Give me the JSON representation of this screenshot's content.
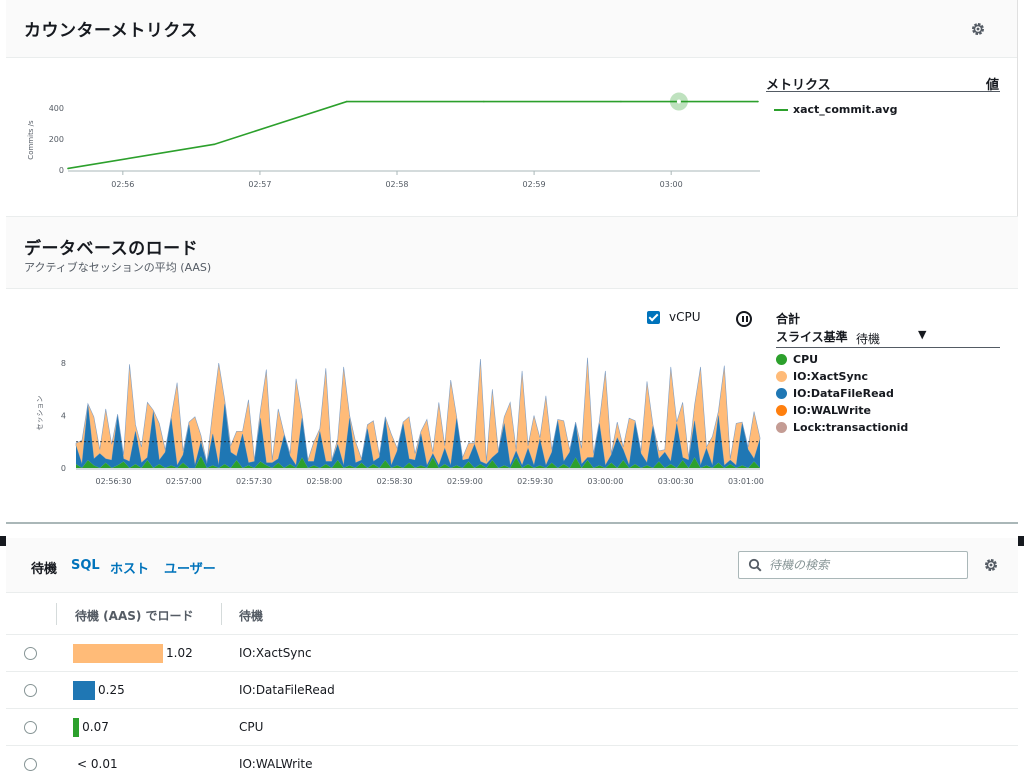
{
  "counter_metrics": {
    "title": "カウンターメトリクス",
    "legend_header_metric": "メトリクス",
    "legend_header_value": "値",
    "legend_items": [
      {
        "label": "xact_commit.avg",
        "color": "#2ca02c"
      }
    ],
    "icon": "gear-icon"
  },
  "db_load": {
    "title": "データベースのロード",
    "subtitle": "アクティブなセッションの平均 (AAS)",
    "vcpu_label": "vCPU",
    "vcpu_checked": true,
    "total_label": "合計",
    "slice_label": "スライス基準",
    "slice_value": "待機",
    "legend": [
      {
        "label": "CPU",
        "color": "#2ca02c"
      },
      {
        "label": "IO:XactSync",
        "color": "#ffbb78"
      },
      {
        "label": "IO:DataFileRead",
        "color": "#1f77b4"
      },
      {
        "label": "IO:WALWrite",
        "color": "#ff7f0e"
      },
      {
        "label": "Lock:transactionid",
        "color": "#c49c94"
      }
    ]
  },
  "chart_data": [
    {
      "type": "line",
      "ylabel": "Commits /s",
      "ylim": [
        0,
        450
      ],
      "yticks": [
        "0",
        "200",
        "400"
      ],
      "x": [
        "02:55:36",
        "02:56:40",
        "02:57:38",
        "02:58:38",
        "02:59:38",
        "03:00:38"
      ],
      "xticks": [
        "02:56",
        "02:57",
        "02:58",
        "02:59",
        "03:00"
      ],
      "series": [
        {
          "name": "xact_commit.avg",
          "color": "#2ca02c",
          "values": [
            10,
            165,
            440,
            440,
            440,
            440
          ]
        }
      ]
    },
    {
      "type": "area",
      "ylabel": "セッション",
      "ylim": [
        0,
        8
      ],
      "yticks": [
        "0",
        "4",
        "8"
      ],
      "xticks": [
        "02:56:30",
        "02:57:00",
        "02:57:30",
        "02:58:00",
        "02:58:30",
        "02:59:00",
        "02:59:30",
        "03:00:00",
        "03:00:30",
        "03:01:00"
      ],
      "vcpu_line": 2,
      "series": [
        {
          "name": "IO:XactSync",
          "color": "#ffbb78",
          "values": [
            0.2,
            1.8,
            0.1,
            3.2,
            0.3,
            3.8,
            1.2,
            0.1,
            0.3,
            7.4,
            0.5,
            1.2,
            4.2,
            0.1,
            2.8,
            0.2,
            0.1,
            6.3,
            0.3,
            0.2,
            3.7,
            0.5,
            0.1,
            1.8,
            7.8,
            0.3,
            0.5,
            1.9,
            0.2,
            4.8,
            0.1,
            0.6,
            7.1,
            0.2,
            3.8,
            0.1,
            0.2,
            6.6,
            0.3,
            0.1,
            1.5,
            0.2,
            7.1,
            0.1,
            0.4,
            7.5,
            0.2,
            1.6,
            0.1,
            0.3,
            3.1,
            0.2,
            0.1,
            2.4,
            0.2,
            0.1,
            3.2,
            0.5,
            0.2,
            3.5,
            0.1,
            4.8,
            0.2,
            6.5,
            0.1,
            0.2,
            1.2,
            0.1,
            7.8,
            0.2,
            5.2,
            0.1,
            0.5,
            4.8,
            0.1,
            7.2,
            0.2,
            3.8,
            0.1,
            5.3,
            0.2,
            0.1,
            3.1,
            0.2,
            0.1,
            1.2,
            7.6,
            0.3,
            0.2,
            7.2,
            0.1,
            1.2,
            0.2,
            3.6,
            0.1,
            0.2,
            6.2,
            0.1,
            0.6,
            0.2,
            7.2,
            0.1,
            4.2,
            0.2,
            1.2,
            7.5,
            0.1,
            2.2,
            0.3,
            7.6,
            0.1,
            3.2,
            0.1,
            0.2,
            3.6,
            0.1
          ]
        },
        {
          "name": "IO:DataFileRead",
          "color": "#1f77b4",
          "values": [
            1.4,
            0.3,
            4.2,
            0.5,
            1.1,
            0.3,
            0.6,
            3.8,
            0.2,
            0.5,
            2.5,
            0.4,
            0.2,
            4.3,
            0.3,
            1.2,
            3.6,
            0.2,
            0.6,
            3.3,
            0.2,
            1.1,
            0.3,
            2.4,
            0.2,
            4.6,
            1.2,
            0.3,
            2.6,
            0.2,
            0.5,
            3.3,
            0.2,
            0.4,
            0.3,
            2.5,
            0.6,
            0.2,
            3.0,
            0.5,
            0.3,
            2.8,
            0.2,
            0.5,
            1.2,
            0.2,
            3.6,
            0.4,
            0.2,
            3.0,
            0.2,
            0.8,
            3.2,
            0.2,
            1.1,
            3.4,
            0.3,
            0.6,
            2.4,
            0.2,
            0.3,
            0.2,
            1.2,
            0.2,
            3.6,
            0.6,
            0.2,
            1.8,
            0.2,
            0.3,
            0.2,
            1.2,
            3.2,
            0.2,
            0.5,
            0.2,
            1.2,
            0.2,
            2.0,
            0.2,
            0.8,
            3.6,
            0.2,
            1.2,
            2.6,
            0.3,
            0.2,
            0.8,
            3.2,
            0.2,
            0.6,
            2.3,
            0.8,
            0.2,
            3.2,
            1.1,
            0.2,
            3.2,
            0.2,
            1.2,
            0.2,
            3.4,
            0.2,
            0.6,
            2.8,
            0.2,
            1.3,
            0.2,
            3.6,
            0.2,
            0.3,
            0.2,
            3.2,
            1.4,
            0.2,
            2.2
          ]
        },
        {
          "name": "CPU",
          "color": "#2ca02c",
          "values": [
            0.3,
            0,
            0.6,
            0.2,
            0,
            0.4,
            0,
            0.2,
            0.5,
            0,
            0.3,
            0,
            0.6,
            0,
            0.3,
            0,
            0.2,
            0,
            0.4,
            0,
            0,
            0.9,
            0,
            0.2,
            0,
            0.3,
            0,
            0.6,
            0,
            0.2,
            0,
            0.5,
            0.2,
            0,
            0.4,
            0,
            0.3,
            0,
            0.8,
            0,
            0.2,
            0,
            0.3,
            0,
            0.6,
            0,
            0.2,
            0,
            0.4,
            0,
            0.3,
            0,
            0.6,
            0,
            0.2,
            0,
            0.4,
            0,
            0.2,
            0,
            0.8,
            0,
            0.3,
            0,
            0.2,
            0,
            0.5,
            0,
            0.3,
            0,
            0.6,
            0,
            0.2,
            0,
            0.8,
            0,
            0.3,
            0,
            0.2,
            0,
            0.4,
            0,
            0.3,
            0,
            0.8,
            0,
            0.6,
            0,
            0.2,
            0,
            0.4,
            0,
            0.6,
            0,
            0.3,
            0,
            0.2,
            0,
            0.5,
            0,
            0.3,
            0,
            0.6,
            0,
            0.8,
            0,
            0.2,
            0,
            0.4,
            0,
            0.3,
            0,
            0.2,
            0,
            0.5,
            0
          ]
        }
      ]
    }
  ],
  "table": {
    "tabs": [
      {
        "label": "待機",
        "active": true
      },
      {
        "label": "SQL",
        "active": false
      },
      {
        "label": "ホスト",
        "active": false
      },
      {
        "label": "ユーザー",
        "active": false
      }
    ],
    "search_placeholder": "待機の検索",
    "col_load": "待機 (AAS) でロード",
    "col_wait": "待機",
    "rows": [
      {
        "load": 1.02,
        "load_label": "1.02",
        "wait": "IO:XactSync",
        "color": "#ffbb78"
      },
      {
        "load": 0.25,
        "load_label": "0.25",
        "wait": "IO:DataFileRead",
        "color": "#1f77b4"
      },
      {
        "load": 0.07,
        "load_label": "0.07",
        "wait": "CPU",
        "color": "#2ca02c"
      },
      {
        "load": 0.0,
        "load_label": "< 0.01",
        "wait": "IO:WALWrite",
        "color": "#ff7f0e"
      }
    ]
  }
}
